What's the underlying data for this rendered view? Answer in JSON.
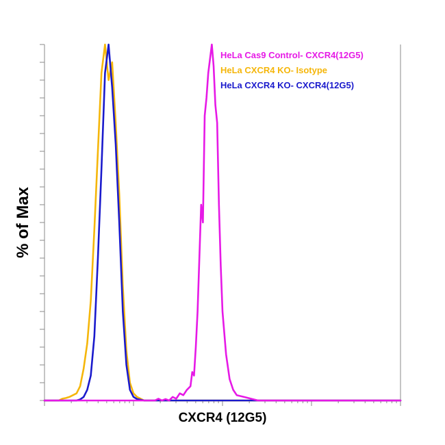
{
  "chart_data": {
    "type": "line",
    "title": "",
    "xlabel": "CXCR4 (12G5)",
    "ylabel": "% of Max",
    "x_scale": "log",
    "xlim": [
      0,
      100
    ],
    "ylim": [
      0,
      100
    ],
    "grid": false,
    "legend": "top-right",
    "series": [
      {
        "name": "HeLa Cas9 Control- CXCR4(12G5)",
        "color": "#e619e6",
        "x": [
          0,
          31,
          32,
          33,
          34,
          35,
          36,
          37,
          38,
          39,
          40,
          41,
          41.5,
          42,
          42.5,
          43,
          43.5,
          44,
          44.5,
          45,
          45.5,
          46,
          46.5,
          47,
          47.5,
          48,
          48.5,
          49,
          49.5,
          50,
          51,
          52,
          53,
          54,
          56,
          58,
          60,
          70,
          100
        ],
        "y": [
          0,
          0,
          0.5,
          0,
          0.4,
          0,
          1,
          0.5,
          2,
          1.5,
          3,
          4,
          8,
          7,
          15,
          25,
          40,
          55,
          50,
          80,
          85,
          92,
          96,
          100,
          94,
          83,
          78,
          55,
          38,
          25,
          13,
          6,
          3,
          1.5,
          1,
          0.5,
          0,
          0,
          0
        ]
      },
      {
        "name": "HeLa CXCR4 KO- Isotype",
        "color": "#f5b60a",
        "x": [
          0,
          4,
          5,
          6,
          7,
          8,
          9,
          10,
          11,
          12,
          13,
          14,
          15,
          16,
          17,
          18,
          19,
          20,
          21,
          22,
          23,
          24,
          25,
          26,
          28,
          30,
          100
        ],
        "y": [
          0,
          0,
          0.5,
          0.7,
          1,
          1.5,
          2,
          4,
          9,
          16,
          28,
          48,
          70,
          92,
          100,
          90,
          95,
          78,
          58,
          32,
          14,
          5,
          2,
          1,
          0,
          0,
          0
        ]
      },
      {
        "name": "HeLa CXCR4 KO- CXCR4(12G5)",
        "color": "#1a1acc",
        "x": [
          0,
          9,
          10,
          11,
          12,
          13,
          14,
          15,
          16,
          17,
          18,
          19,
          20,
          21,
          22,
          23,
          24,
          25,
          26,
          28,
          30,
          100
        ],
        "y": [
          0,
          0,
          0.3,
          1,
          3,
          7,
          18,
          40,
          65,
          92,
          100,
          88,
          72,
          50,
          25,
          10,
          3,
          1,
          0.4,
          0,
          0,
          0
        ]
      }
    ]
  }
}
